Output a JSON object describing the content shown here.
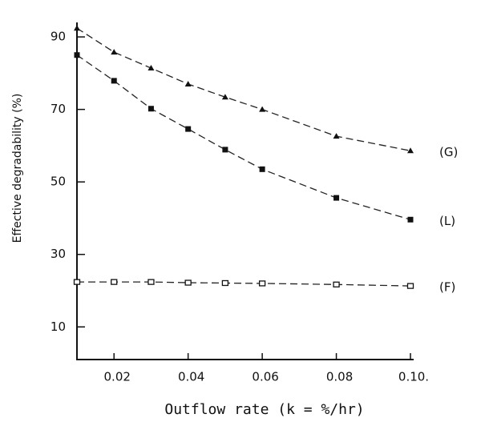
{
  "chart_data": {
    "type": "line",
    "y_label": "Effective degradability (%)",
    "x_label": "Outflow rate (k = %/hr)",
    "xlim": [
      0.01,
      0.1
    ],
    "ylim": [
      1,
      94
    ],
    "xticks": [
      0.02,
      0.04,
      0.06,
      0.08,
      {
        "value": 0.1,
        "label": "0.10."
      }
    ],
    "yticks": [
      10,
      30,
      50,
      70,
      90
    ],
    "x": [
      0.01,
      0.02,
      0.03,
      0.04,
      0.05,
      0.06,
      0.08,
      0.1
    ],
    "series": [
      {
        "name": "(G)",
        "color": "#111111",
        "marker": "triangle",
        "values": [
          92.4,
          85.8,
          81.4,
          77,
          73.4,
          70,
          62.6,
          58.6
        ]
      },
      {
        "name": "(L)",
        "color": "#111111",
        "marker": "square-filled",
        "values": [
          85,
          77.9,
          70.2,
          64.6,
          58.9,
          53.5,
          45.6,
          39.6
        ]
      },
      {
        "name": "(F)",
        "color": "#111111",
        "marker": "square-open",
        "values": [
          22.4,
          22.4,
          22.4,
          22.2,
          22.1,
          22,
          21.7,
          21.3
        ]
      }
    ]
  }
}
